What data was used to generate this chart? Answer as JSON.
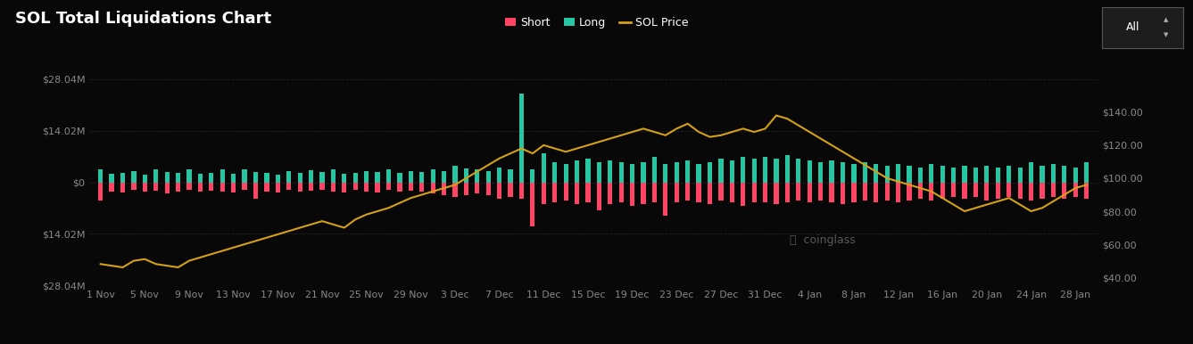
{
  "title": "SOL Total Liquidations Chart",
  "bg_color": "#080808",
  "bar_color_long": "#26c6a2",
  "bar_color_short": "#ff4466",
  "price_line_color": "#d4a017",
  "grid_color": "#222222",
  "text_color": "#ffffff",
  "tick_color": "#888888",
  "ylim_left": [
    -28.04,
    28.04
  ],
  "ylim_right": [
    35,
    160
  ],
  "yticks_left": [
    -28.04,
    -14.02,
    0,
    14.02,
    28.04
  ],
  "yticks_left_labels": [
    "$28.04M",
    "$14.02M",
    "$0",
    "$14.02M",
    "$28.04M"
  ],
  "yticks_right": [
    40,
    60,
    80,
    100,
    120,
    140
  ],
  "yticks_right_labels": [
    "$40.00",
    "$60.00",
    "$80.00",
    "$100.00",
    "$120.00",
    "$140.00"
  ],
  "x_tick_labels": [
    "1 Nov",
    "5 Nov",
    "9 Nov",
    "13 Nov",
    "17 Nov",
    "21 Nov",
    "25 Nov",
    "29 Nov",
    "3 Dec",
    "7 Dec",
    "11 Dec",
    "15 Dec",
    "19 Dec",
    "23 Dec",
    "27 Dec",
    "31 Dec",
    "4 Jan",
    "8 Jan",
    "12 Jan",
    "16 Jan",
    "20 Jan",
    "24 Jan",
    "28 Jan"
  ],
  "x_tick_positions": [
    0,
    4,
    8,
    12,
    16,
    20,
    24,
    28,
    32,
    36,
    40,
    44,
    48,
    52,
    56,
    60,
    64,
    68,
    72,
    76,
    80,
    84,
    88
  ],
  "n_bars": 90,
  "long_liq": [
    3.5,
    2.2,
    2.5,
    3.0,
    2.0,
    3.5,
    2.8,
    2.5,
    3.5,
    2.2,
    2.5,
    3.5,
    2.2,
    3.5,
    2.8,
    2.5,
    2.0,
    3.0,
    2.5,
    3.2,
    2.8,
    3.5,
    2.2,
    2.5,
    3.0,
    2.8,
    3.5,
    2.5,
    3.0,
    2.8,
    3.5,
    3.0,
    4.5,
    3.8,
    3.5,
    3.0,
    4.0,
    3.5,
    24.0,
    3.5,
    8.0,
    5.5,
    5.0,
    6.0,
    6.5,
    5.5,
    6.0,
    5.5,
    5.0,
    5.5,
    7.0,
    5.0,
    5.5,
    6.0,
    5.0,
    5.5,
    6.5,
    6.0,
    7.0,
    6.5,
    7.0,
    6.5,
    7.5,
    6.5,
    6.0,
    5.5,
    6.0,
    5.5,
    5.0,
    5.5,
    5.0,
    4.5,
    5.0,
    4.5,
    4.0,
    5.0,
    4.5,
    4.0,
    4.5,
    4.0,
    4.5,
    4.0,
    4.5,
    4.0,
    5.5,
    4.5,
    5.0,
    4.5,
    4.0,
    5.5
  ],
  "short_liq": [
    -5.0,
    -2.5,
    -2.8,
    -2.0,
    -2.5,
    -2.2,
    -3.0,
    -2.5,
    -2.0,
    -2.5,
    -2.2,
    -2.5,
    -2.8,
    -2.0,
    -4.5,
    -2.5,
    -2.8,
    -2.0,
    -2.5,
    -2.2,
    -2.0,
    -2.5,
    -2.8,
    -2.0,
    -2.5,
    -2.8,
    -2.0,
    -2.5,
    -2.2,
    -2.5,
    -3.0,
    -3.5,
    -4.0,
    -3.5,
    -3.0,
    -3.5,
    -4.5,
    -4.0,
    -4.5,
    -12.0,
    -6.0,
    -5.5,
    -5.0,
    -6.0,
    -5.5,
    -7.5,
    -6.0,
    -5.5,
    -6.5,
    -6.0,
    -5.5,
    -9.0,
    -5.5,
    -5.0,
    -5.5,
    -6.0,
    -5.0,
    -5.5,
    -6.5,
    -5.5,
    -5.5,
    -6.0,
    -5.5,
    -5.0,
    -5.5,
    -5.0,
    -5.5,
    -6.0,
    -5.5,
    -5.0,
    -5.5,
    -5.0,
    -5.5,
    -5.0,
    -4.5,
    -5.0,
    -4.5,
    -4.0,
    -4.5,
    -4.0,
    -5.0,
    -4.5,
    -4.0,
    -4.5,
    -5.0,
    -4.5,
    -4.0,
    -4.5,
    -4.0,
    -4.5
  ],
  "sol_price": [
    48,
    47,
    46,
    50,
    51,
    48,
    47,
    46,
    50,
    52,
    54,
    56,
    58,
    60,
    62,
    64,
    66,
    68,
    70,
    72,
    74,
    72,
    70,
    75,
    78,
    80,
    82,
    85,
    88,
    90,
    92,
    94,
    96,
    100,
    104,
    108,
    112,
    115,
    118,
    115,
    120,
    118,
    116,
    118,
    120,
    122,
    124,
    126,
    128,
    130,
    128,
    126,
    130,
    133,
    128,
    125,
    126,
    128,
    130,
    128,
    130,
    138,
    136,
    132,
    128,
    124,
    120,
    116,
    112,
    108,
    104,
    100,
    98,
    96,
    94,
    92,
    88,
    84,
    80,
    82,
    84,
    86,
    88,
    84,
    80,
    82,
    86,
    90,
    94,
    96
  ],
  "legend_items": [
    {
      "label": "Short",
      "color": "#ff4466",
      "type": "patch"
    },
    {
      "label": "Long",
      "color": "#26c6a2",
      "type": "patch"
    },
    {
      "label": "SOL Price",
      "color": "#d4a017",
      "type": "line"
    }
  ],
  "button_text": "All",
  "watermark": "coinglass"
}
